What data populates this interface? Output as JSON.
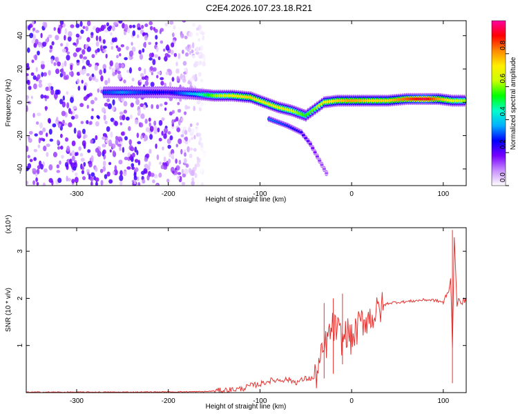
{
  "figure_title": "C2E4.2026.107.23.18.R21",
  "chart_data": [
    {
      "type": "heatmap",
      "xlabel": "Height of straight line (km)",
      "ylabel": "Frequency (Hz)",
      "xlim": [
        -355,
        125
      ],
      "ylim": [
        -50,
        49
      ],
      "x_ticks": [
        -300,
        -200,
        -100,
        0,
        100
      ],
      "y_ticks": [
        -40,
        -20,
        0,
        20,
        40
      ],
      "colorbar": {
        "label": "Normalized spectral amplitude",
        "range": [
          0,
          1
        ],
        "ticks": [
          0.0,
          0.2,
          0.4,
          0.6,
          0.8
        ],
        "tick_labels": [
          "0.0",
          "0.2",
          "0.4",
          "0.6",
          "0.8"
        ],
        "colormap": [
          "#ffffff",
          "#c890ff",
          "#7700ff",
          "#0000ff",
          "#00b0ff",
          "#00ffcc",
          "#00ff00",
          "#ccff00",
          "#ffee00",
          "#ff8800",
          "#ff0000",
          "#ff00a0"
        ]
      },
      "noise_region": {
        "x_range": [
          -355,
          -160
        ],
        "freq_range": [
          -50,
          49
        ],
        "typical_amplitude": 0.15
      },
      "ridge": [
        {
          "x": -270,
          "freq": 6,
          "amplitude": 0.3
        },
        {
          "x": -250,
          "freq": 6,
          "amplitude": 0.35
        },
        {
          "x": -230,
          "freq": 6,
          "amplitude": 0.3
        },
        {
          "x": -200,
          "freq": 6,
          "amplitude": 0.25
        },
        {
          "x": -170,
          "freq": 5,
          "amplitude": 0.4
        },
        {
          "x": -150,
          "freq": 4,
          "amplitude": 0.6
        },
        {
          "x": -130,
          "freq": 4,
          "amplitude": 0.7
        },
        {
          "x": -110,
          "freq": 3,
          "amplitude": 0.75
        },
        {
          "x": -95,
          "freq": 0,
          "amplitude": 0.7
        },
        {
          "x": -80,
          "freq": -3,
          "amplitude": 0.7
        },
        {
          "x": -65,
          "freq": -5,
          "amplitude": 0.65
        },
        {
          "x": -50,
          "freq": -8,
          "amplitude": 0.55
        },
        {
          "x": -40,
          "freq": -4,
          "amplitude": 0.6
        },
        {
          "x": -30,
          "freq": 0,
          "amplitude": 0.7
        },
        {
          "x": -15,
          "freq": 1,
          "amplitude": 0.75
        },
        {
          "x": 0,
          "freq": 1,
          "amplitude": 0.8
        },
        {
          "x": 20,
          "freq": 1,
          "amplitude": 0.75
        },
        {
          "x": 40,
          "freq": 1,
          "amplitude": 0.75
        },
        {
          "x": 60,
          "freq": 2,
          "amplitude": 0.85
        },
        {
          "x": 80,
          "freq": 2,
          "amplitude": 0.95
        },
        {
          "x": 95,
          "freq": 2,
          "amplitude": 0.8
        },
        {
          "x": 110,
          "freq": 1,
          "amplitude": 0.7
        },
        {
          "x": 125,
          "freq": 1,
          "amplitude": 0.6
        }
      ],
      "secondary_branch": [
        {
          "x": -90,
          "freq": -10,
          "amplitude": 0.35
        },
        {
          "x": -70,
          "freq": -14,
          "amplitude": 0.3
        },
        {
          "x": -55,
          "freq": -18,
          "amplitude": 0.25
        },
        {
          "x": -45,
          "freq": -25,
          "amplitude": 0.2
        },
        {
          "x": -35,
          "freq": -35,
          "amplitude": 0.15
        },
        {
          "x": -25,
          "freq": -45,
          "amplitude": 0.12
        }
      ]
    },
    {
      "type": "line",
      "xlabel": "Height of straight line (km)",
      "ylabel": "SNR (10 * v/v)",
      "y_multiplier": "(x10⁴)",
      "xlim": [
        -355,
        125
      ],
      "ylim": [
        0,
        3.5
      ],
      "x_ticks": [
        -300,
        -200,
        -100,
        0,
        100
      ],
      "y_ticks": [
        1,
        2,
        3
      ],
      "color": "#e8322f",
      "series": [
        {
          "x": [
            -355,
            -300,
            -250,
            -200,
            -160,
            -140,
            -120,
            -110,
            -100,
            -90,
            -80,
            -70,
            -60,
            -50,
            -40,
            -35,
            -30,
            -25,
            -20,
            -15,
            -10,
            -5,
            0,
            5,
            10,
            15,
            20,
            25,
            30,
            35,
            40,
            50,
            60,
            70,
            80,
            90,
            100,
            105,
            108,
            110,
            112,
            115,
            120,
            125
          ],
          "y": [
            0.01,
            0.01,
            0.01,
            0.015,
            0.02,
            0.05,
            0.08,
            0.15,
            0.18,
            0.25,
            0.27,
            0.28,
            0.22,
            0.3,
            0.3,
            0.6,
            0.9,
            1.2,
            1.4,
            1.3,
            1.1,
            1.3,
            1.1,
            1.3,
            1.5,
            1.55,
            1.6,
            1.65,
            1.75,
            1.85,
            1.9,
            1.92,
            1.93,
            1.95,
            1.97,
            1.96,
            1.92,
            2.1,
            2.4,
            1.0,
            3.3,
            1.9,
            1.95,
            1.93
          ]
        }
      ],
      "noise_bursts": [
        {
          "x": -30,
          "y_range": [
            0.3,
            1.9
          ]
        },
        {
          "x": -20,
          "y_range": [
            0.4,
            2.0
          ]
        },
        {
          "x": -10,
          "y_range": [
            0.6,
            2.1
          ]
        },
        {
          "x": 110,
          "y_range": [
            0.2,
            3.45
          ]
        }
      ]
    }
  ]
}
